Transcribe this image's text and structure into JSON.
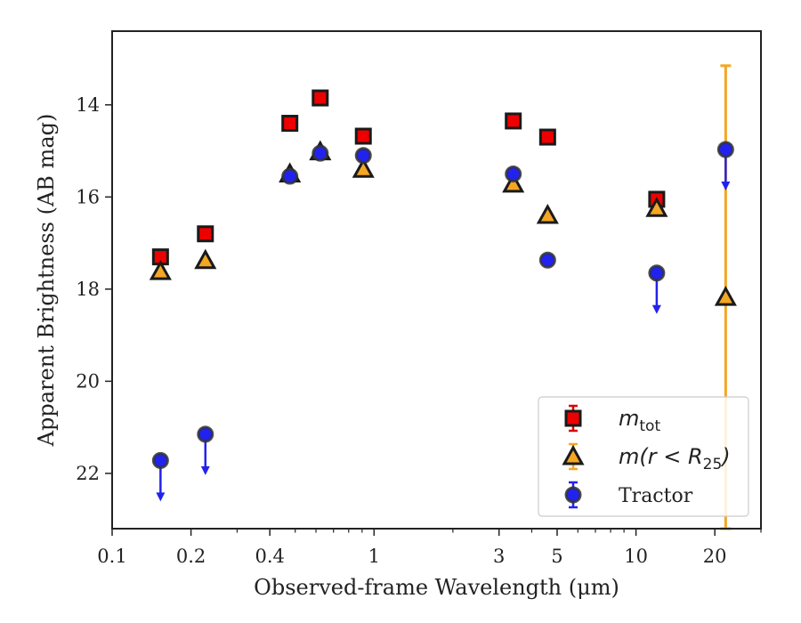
{
  "chart_data": {
    "type": "scatter",
    "title": "",
    "xlabel": "Observed-frame Wavelength (μm)",
    "ylabel": "Apparent Brightness (AB mag)",
    "xscale": "log",
    "xlim": [
      0.1,
      30
    ],
    "ylim": [
      23.2,
      12.4
    ],
    "y_inverted": true,
    "grid": false,
    "legend_position": "lower-right",
    "x_ticks": [
      0.1,
      0.2,
      0.4,
      1,
      3,
      5,
      10,
      20
    ],
    "x_tick_labels": [
      "0.1",
      "0.2",
      "0.4",
      "1",
      "3",
      "5",
      "10",
      "20"
    ],
    "y_ticks": [
      14,
      16,
      18,
      20,
      22
    ],
    "y_tick_labels": [
      "14",
      "16",
      "18",
      "20",
      "22"
    ],
    "series": [
      {
        "name": "m_tot",
        "legend_main": "m",
        "legend_sub": "tot",
        "marker": "square",
        "color": "#ee0000",
        "errorbar_color": "#dd0000",
        "points": [
          {
            "x": 0.153,
            "y": 17.3
          },
          {
            "x": 0.227,
            "y": 16.8
          },
          {
            "x": 0.477,
            "y": 14.4
          },
          {
            "x": 0.623,
            "y": 13.85
          },
          {
            "x": 0.91,
            "y": 14.68
          },
          {
            "x": 3.4,
            "y": 14.35
          },
          {
            "x": 4.6,
            "y": 14.7
          },
          {
            "x": 12.0,
            "y": 16.05
          }
        ]
      },
      {
        "name": "m(r<R_25)",
        "legend_main": "m(r < R",
        "legend_sub": "25",
        "legend_tail": ")",
        "marker": "triangle",
        "color": "#f5a623",
        "errorbar_color": "#f5a623",
        "points": [
          {
            "x": 0.153,
            "y": 17.62,
            "err": 0
          },
          {
            "x": 0.227,
            "y": 17.38,
            "err": 0
          },
          {
            "x": 0.477,
            "y": 15.5,
            "err": 0
          },
          {
            "x": 0.623,
            "y": 15.02,
            "err": 0
          },
          {
            "x": 0.91,
            "y": 15.4,
            "err": 0
          },
          {
            "x": 3.4,
            "y": 15.72,
            "err": 0
          },
          {
            "x": 4.6,
            "y": 16.4,
            "err": 0
          },
          {
            "x": 12.0,
            "y": 16.25,
            "err": 0
          },
          {
            "x": 22.0,
            "y": 18.18,
            "err_low": 13.15,
            "err_high": 23.2
          }
        ]
      },
      {
        "name": "Tractor",
        "legend_main": "Tractor",
        "marker": "circle",
        "color": "#2222ee",
        "errorbar_color": "#2222ee",
        "points": [
          {
            "x": 0.153,
            "y": 21.72,
            "upper_limit": true
          },
          {
            "x": 0.227,
            "y": 21.15,
            "upper_limit": true
          },
          {
            "x": 0.477,
            "y": 15.55
          },
          {
            "x": 0.623,
            "y": 15.05
          },
          {
            "x": 0.91,
            "y": 15.1
          },
          {
            "x": 3.4,
            "y": 15.5
          },
          {
            "x": 4.6,
            "y": 17.37
          },
          {
            "x": 12.0,
            "y": 17.65,
            "upper_limit": true
          },
          {
            "x": 22.0,
            "y": 14.97,
            "upper_limit": true
          }
        ]
      }
    ]
  }
}
